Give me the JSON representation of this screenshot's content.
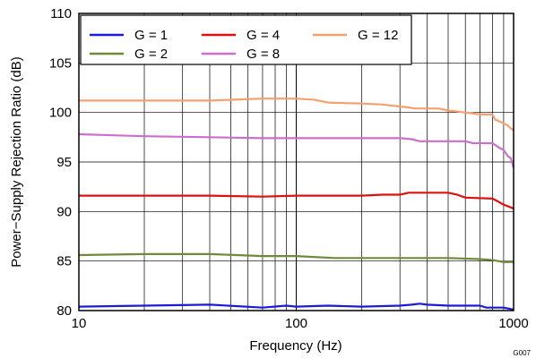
{
  "chart_data": {
    "type": "line",
    "xlabel": "Frequency (Hz)",
    "ylabel": "Power−Supply Rejection Ratio (dB)",
    "figure_id": "G007",
    "x_scale": "log",
    "xlim": [
      10,
      1000
    ],
    "ylim": [
      80,
      110
    ],
    "x_ticks": [
      {
        "value": 10,
        "label": "10"
      },
      {
        "value": 100,
        "label": "100"
      },
      {
        "value": 1000,
        "label": "1000"
      }
    ],
    "y_ticks": [
      {
        "value": 80,
        "label": "80"
      },
      {
        "value": 85,
        "label": "85"
      },
      {
        "value": 90,
        "label": "90"
      },
      {
        "value": 95,
        "label": "95"
      },
      {
        "value": 100,
        "label": "100"
      },
      {
        "value": 105,
        "label": "105"
      },
      {
        "value": 110,
        "label": "110"
      }
    ],
    "grid": true,
    "legend_position": "top",
    "series": [
      {
        "name": "G = 1",
        "color": "#1a1adb",
        "x": [
          10,
          20,
          40,
          70,
          90,
          100,
          140,
          200,
          300,
          340,
          370,
          400,
          500,
          700,
          750,
          900,
          1000
        ],
        "y": [
          80.4,
          80.5,
          80.6,
          80.3,
          80.5,
          80.4,
          80.5,
          80.4,
          80.5,
          80.6,
          80.7,
          80.6,
          80.5,
          80.5,
          80.3,
          80.3,
          80.1
        ]
      },
      {
        "name": "G = 2",
        "color": "#6f8a3a",
        "x": [
          10,
          20,
          40,
          70,
          100,
          150,
          200,
          300,
          500,
          700,
          800,
          900,
          1000
        ],
        "y": [
          85.6,
          85.7,
          85.7,
          85.5,
          85.5,
          85.3,
          85.3,
          85.3,
          85.3,
          85.2,
          85.1,
          84.9,
          84.9
        ]
      },
      {
        "name": "G = 4",
        "color": "#e01010",
        "x": [
          10,
          20,
          40,
          70,
          100,
          150,
          200,
          250,
          300,
          330,
          500,
          550,
          600,
          800,
          850,
          900,
          950,
          1000
        ],
        "y": [
          91.6,
          91.6,
          91.6,
          91.5,
          91.6,
          91.6,
          91.6,
          91.7,
          91.7,
          91.9,
          91.9,
          91.7,
          91.4,
          91.3,
          91.0,
          90.7,
          90.5,
          90.3
        ]
      },
      {
        "name": "G = 8",
        "color": "#cc6fcc",
        "x": [
          10,
          20,
          40,
          70,
          100,
          150,
          200,
          300,
          340,
          370,
          600,
          650,
          800,
          850,
          900,
          940,
          970,
          1000
        ],
        "y": [
          97.8,
          97.6,
          97.5,
          97.4,
          97.4,
          97.4,
          97.4,
          97.4,
          97.3,
          97.1,
          97.1,
          96.9,
          96.9,
          96.5,
          96.2,
          95.6,
          95.4,
          94.4
        ]
      },
      {
        "name": "G = 12",
        "color": "#f5a06e",
        "x": [
          10,
          20,
          40,
          70,
          100,
          120,
          140,
          200,
          250,
          330,
          350,
          450,
          500,
          600,
          700,
          800,
          820,
          900,
          940,
          970,
          1000
        ],
        "y": [
          101.2,
          101.2,
          101.2,
          101.4,
          101.4,
          101.3,
          101.0,
          100.9,
          100.8,
          100.5,
          100.4,
          100.4,
          100.2,
          100.0,
          99.8,
          99.8,
          99.3,
          98.9,
          98.7,
          98.4,
          98.2
        ]
      }
    ]
  }
}
